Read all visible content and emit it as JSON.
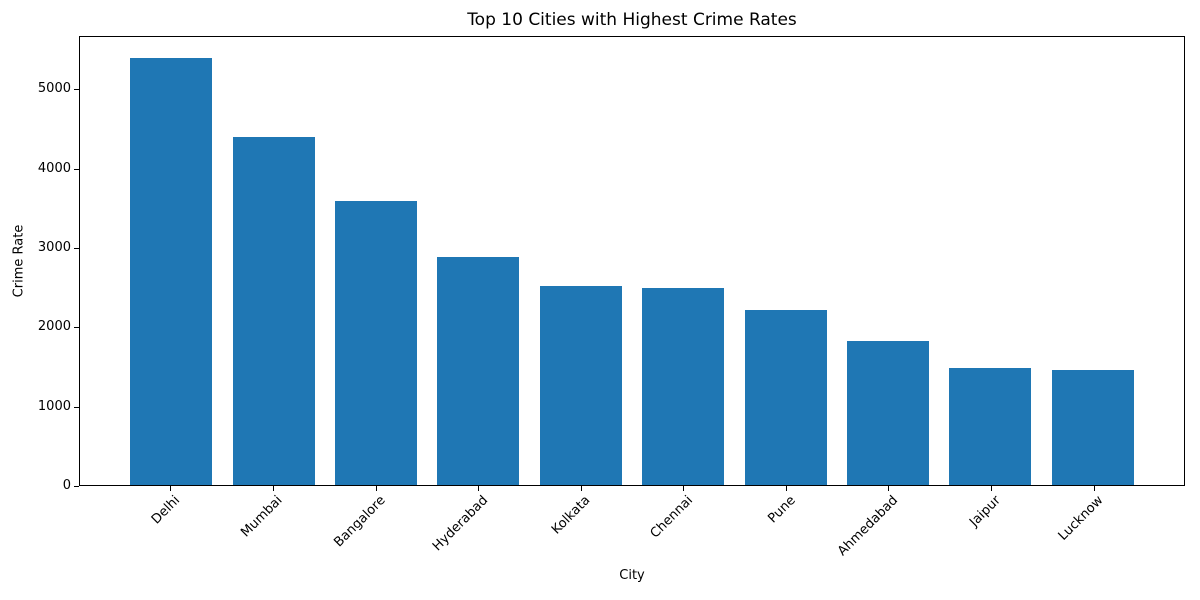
{
  "chart_data": {
    "type": "bar",
    "title": "Top 10 Cities with Highest Crime Rates",
    "xlabel": "City",
    "ylabel": "Crime Rate",
    "categories": [
      "Delhi",
      "Mumbai",
      "Bangalore",
      "Hyderabad",
      "Kolkata",
      "Chennai",
      "Pune",
      "Ahmedabad",
      "Jaipur",
      "Lucknow"
    ],
    "values": [
      5400,
      4410,
      3590,
      2880,
      2520,
      2490,
      2210,
      1820,
      1480,
      1450
    ],
    "yticks": [
      0,
      1000,
      2000,
      3000,
      4000,
      5000
    ],
    "ylim": [
      0,
      5670
    ],
    "bar_color": "#1f77b4",
    "axis_color": "#000000",
    "background_color": "#ffffff",
    "grid": false,
    "legend_position": "none",
    "x_tick_rotation_deg": 45,
    "bar_width_fraction": 0.8
  }
}
